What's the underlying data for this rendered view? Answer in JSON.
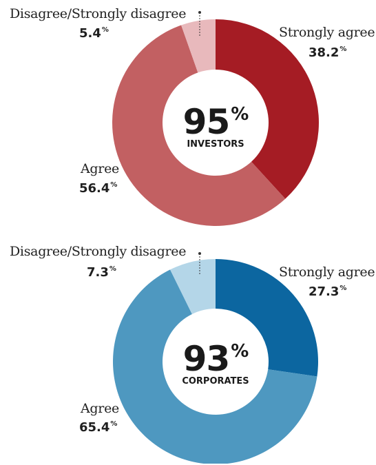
{
  "chart_data": [
    {
      "type": "pie",
      "center_value": "95",
      "center_unit": "%",
      "center_label": "INVESTORS",
      "categories": [
        "Strongly agree",
        "Agree",
        "Disagree/Strongly disagree"
      ],
      "values": [
        38.2,
        56.4,
        5.4
      ],
      "value_labels": [
        "38.2",
        "56.4",
        "5.4"
      ],
      "unit": "%",
      "colors": [
        "#a51c24",
        "#c26062",
        "#e8b9bc"
      ]
    },
    {
      "type": "pie",
      "center_value": "93",
      "center_unit": "%",
      "center_label": "CORPORATES",
      "categories": [
        "Strongly agree",
        "Agree",
        "Disagree/Strongly disagree"
      ],
      "values": [
        27.3,
        65.4,
        7.3
      ],
      "value_labels": [
        "27.3",
        "65.4",
        "7.3"
      ],
      "unit": "%",
      "colors": [
        "#0c66a0",
        "#4e98c0",
        "#b4d6e8"
      ]
    }
  ]
}
